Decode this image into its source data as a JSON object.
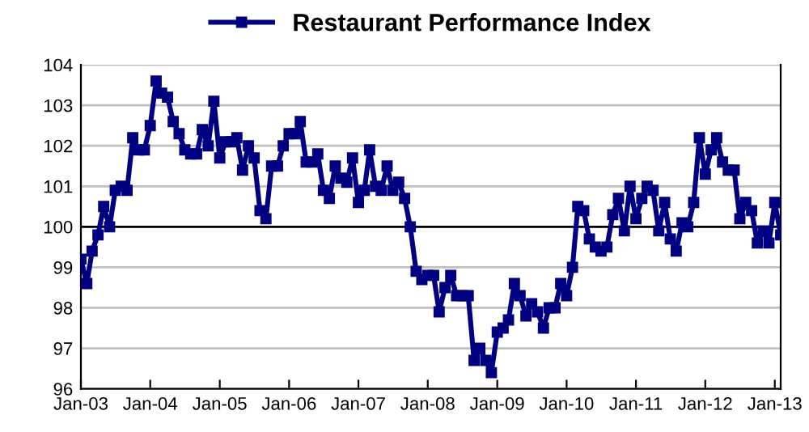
{
  "chart_data": {
    "type": "line",
    "x": [
      "2003-01",
      "2003-02",
      "2003-03",
      "2003-04",
      "2003-05",
      "2003-06",
      "2003-07",
      "2003-08",
      "2003-09",
      "2003-10",
      "2003-11",
      "2003-12",
      "2004-01",
      "2004-02",
      "2004-03",
      "2004-04",
      "2004-05",
      "2004-06",
      "2004-07",
      "2004-08",
      "2004-09",
      "2004-10",
      "2004-11",
      "2004-12",
      "2005-01",
      "2005-02",
      "2005-03",
      "2005-04",
      "2005-05",
      "2005-06",
      "2005-07",
      "2005-08",
      "2005-09",
      "2005-10",
      "2005-11",
      "2005-12",
      "2006-01",
      "2006-02",
      "2006-03",
      "2006-04",
      "2006-05",
      "2006-06",
      "2006-07",
      "2006-08",
      "2006-09",
      "2006-10",
      "2006-11",
      "2006-12",
      "2007-01",
      "2007-02",
      "2007-03",
      "2007-04",
      "2007-05",
      "2007-06",
      "2007-07",
      "2007-08",
      "2007-09",
      "2007-10",
      "2007-11",
      "2007-12",
      "2008-01",
      "2008-02",
      "2008-03",
      "2008-04",
      "2008-05",
      "2008-06",
      "2008-07",
      "2008-08",
      "2008-09",
      "2008-10",
      "2008-11",
      "2008-12",
      "2009-01",
      "2009-02",
      "2009-03",
      "2009-04",
      "2009-05",
      "2009-06",
      "2009-07",
      "2009-08",
      "2009-09",
      "2009-10",
      "2009-11",
      "2009-12",
      "2010-01",
      "2010-02",
      "2010-03",
      "2010-04",
      "2010-05",
      "2010-06",
      "2010-07",
      "2010-08",
      "2010-09",
      "2010-10",
      "2010-11",
      "2010-12",
      "2011-01",
      "2011-02",
      "2011-03",
      "2011-04",
      "2011-05",
      "2011-06",
      "2011-07",
      "2011-08",
      "2011-09",
      "2011-10",
      "2011-11",
      "2011-12",
      "2012-01",
      "2012-02",
      "2012-03",
      "2012-04",
      "2012-05",
      "2012-06",
      "2012-07",
      "2012-08",
      "2012-09",
      "2012-10",
      "2012-11",
      "2012-12",
      "2013-01",
      "2013-02"
    ],
    "series": [
      {
        "name": "Restaurant Performance Index",
        "color": "#000080",
        "values": [
          99.2,
          98.6,
          99.4,
          99.8,
          100.5,
          100.0,
          100.9,
          101.0,
          100.9,
          102.2,
          101.9,
          101.9,
          102.5,
          103.6,
          103.3,
          103.2,
          102.6,
          102.3,
          101.9,
          101.8,
          101.8,
          102.4,
          102.0,
          103.1,
          101.7,
          102.1,
          102.1,
          102.2,
          101.4,
          102.0,
          101.7,
          100.4,
          100.2,
          101.5,
          101.5,
          102.0,
          102.3,
          102.3,
          102.6,
          101.6,
          101.6,
          101.8,
          100.9,
          100.7,
          101.5,
          101.2,
          101.1,
          101.7,
          100.6,
          100.9,
          101.9,
          101.0,
          100.9,
          101.5,
          100.9,
          101.1,
          100.7,
          100.0,
          98.9,
          98.7,
          98.8,
          98.8,
          97.9,
          98.5,
          98.8,
          98.3,
          98.3,
          98.3,
          96.7,
          97.0,
          96.7,
          96.4,
          97.4,
          97.5,
          97.7,
          98.6,
          98.3,
          97.8,
          98.1,
          97.9,
          97.5,
          98.0,
          98.0,
          98.6,
          98.3,
          99.0,
          100.5,
          100.4,
          99.7,
          99.5,
          99.4,
          99.5,
          100.3,
          100.7,
          99.9,
          101.0,
          100.2,
          100.7,
          101.0,
          100.9,
          99.9,
          100.6,
          99.7,
          99.4,
          100.1,
          100.0,
          100.6,
          102.2,
          101.3,
          101.9,
          102.2,
          101.6,
          101.4,
          101.4,
          100.2,
          100.6,
          100.4,
          99.6,
          99.9,
          99.6,
          100.6,
          99.8
        ]
      }
    ],
    "xlim": [
      "2003-01",
      "2013-02"
    ],
    "xticks": [
      {
        "value": "2003-01",
        "label": "Jan-03"
      },
      {
        "value": "2004-01",
        "label": "Jan-04"
      },
      {
        "value": "2005-01",
        "label": "Jan-05"
      },
      {
        "value": "2006-01",
        "label": "Jan-06"
      },
      {
        "value": "2007-01",
        "label": "Jan-07"
      },
      {
        "value": "2008-01",
        "label": "Jan-08"
      },
      {
        "value": "2009-01",
        "label": "Jan-09"
      },
      {
        "value": "2010-01",
        "label": "Jan-10"
      },
      {
        "value": "2011-01",
        "label": "Jan-11"
      },
      {
        "value": "2012-01",
        "label": "Jan-12"
      },
      {
        "value": "2013-01",
        "label": "Jan-13"
      }
    ],
    "ylim": [
      96,
      104
    ],
    "yticks": [
      96,
      97,
      98,
      99,
      100,
      101,
      102,
      103,
      104
    ],
    "ref_lines": [
      {
        "axis": "y",
        "value": 100,
        "color": "#000000"
      }
    ],
    "grid": "y",
    "legend": "top",
    "marker": "square",
    "line_style": "solid"
  }
}
